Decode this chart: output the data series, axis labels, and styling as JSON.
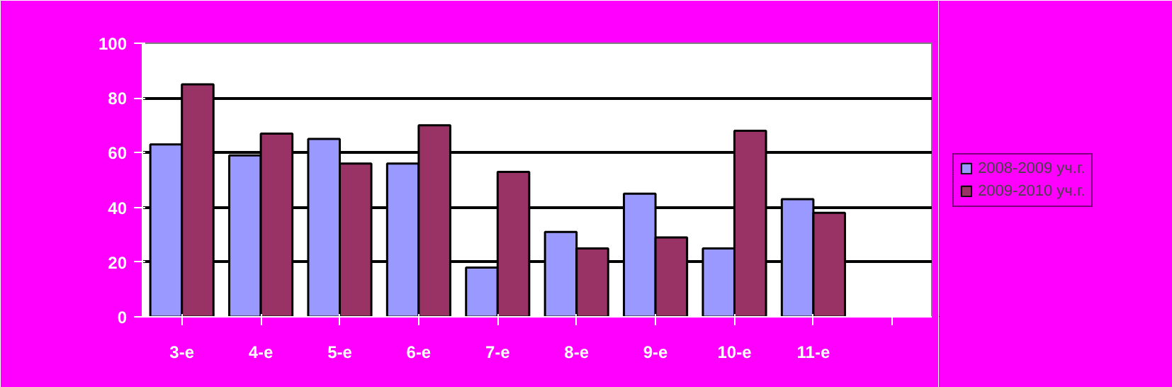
{
  "chart_data": {
    "type": "bar",
    "categories": [
      "3-е",
      "4-е",
      "5-е",
      "6-е",
      "7-е",
      "8-е",
      "9-е",
      "10-е",
      "11-е",
      null
    ],
    "series": [
      {
        "name": "2008-2009 уч.г.",
        "color": "#9999ff",
        "values": [
          63,
          59,
          65,
          56,
          18,
          31,
          45,
          25,
          43,
          null
        ]
      },
      {
        "name": "2009-2010 уч.г.",
        "color": "#993366",
        "values": [
          85,
          67,
          56,
          70,
          53,
          25,
          29,
          68,
          38,
          null
        ]
      }
    ],
    "ylim": [
      0,
      100
    ],
    "yticks": [
      0,
      20,
      40,
      60,
      80,
      100
    ],
    "grid": "y",
    "legend": "right"
  }
}
